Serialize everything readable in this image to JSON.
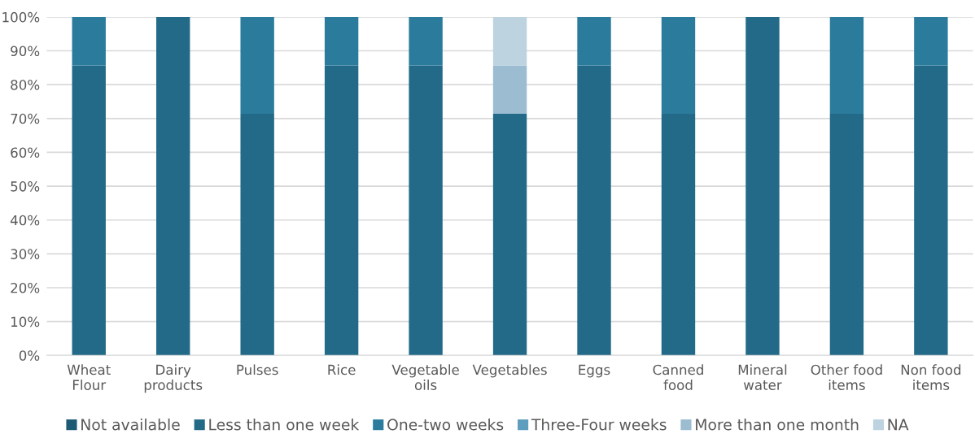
{
  "chart_data": {
    "type": "bar",
    "stacked": true,
    "categories": [
      "Wheat\nFlour",
      "Dairy\nproducts",
      "Pulses",
      "Rice",
      "Vegetable\noils",
      "Vegetables",
      "Eggs",
      "Canned\nfood",
      "Mineral\nwater",
      "Other food\nitems",
      "Non food\nitems"
    ],
    "series": [
      {
        "name": "Not available",
        "color": "#1d5a74",
        "values": [
          0,
          0,
          0,
          0,
          0,
          0,
          0,
          0,
          0,
          0,
          0
        ]
      },
      {
        "name": "Less than one week",
        "color": "#236a88",
        "values": [
          85.7,
          100,
          71.4,
          85.7,
          85.7,
          71.4,
          85.7,
          71.4,
          100,
          71.4,
          85.7
        ]
      },
      {
        "name": "One-two weeks",
        "color": "#2b7c9c",
        "values": [
          14.3,
          0,
          28.6,
          14.3,
          14.3,
          0,
          14.3,
          28.6,
          0,
          28.6,
          14.3
        ]
      },
      {
        "name": "Three-Four weeks",
        "color": "#5d9dbd",
        "values": [
          0,
          0,
          0,
          0,
          0,
          0,
          0,
          0,
          0,
          0,
          0
        ]
      },
      {
        "name": "More than one month",
        "color": "#9bbcd1",
        "values": [
          0,
          0,
          0,
          0,
          0,
          14.3,
          0,
          0,
          0,
          0,
          0
        ]
      },
      {
        "name": "NA",
        "color": "#bdd3df",
        "values": [
          0,
          0,
          0,
          0,
          0,
          14.3,
          0,
          0,
          0,
          0,
          0
        ]
      }
    ],
    "ylim": [
      0,
      100
    ],
    "yticks": [
      {
        "value": 0,
        "label": "0%"
      },
      {
        "value": 10,
        "label": "10%"
      },
      {
        "value": 20,
        "label": "20%"
      },
      {
        "value": 30,
        "label": "30%"
      },
      {
        "value": 40,
        "label": "40%"
      },
      {
        "value": 50,
        "label": "50%"
      },
      {
        "value": 60,
        "label": "60%"
      },
      {
        "value": 70,
        "label": "70%"
      },
      {
        "value": 80,
        "label": "80%"
      },
      {
        "value": 90,
        "label": "90%"
      },
      {
        "value": 100,
        "label": "100%"
      }
    ],
    "grid": "y",
    "legend": "bottom"
  }
}
